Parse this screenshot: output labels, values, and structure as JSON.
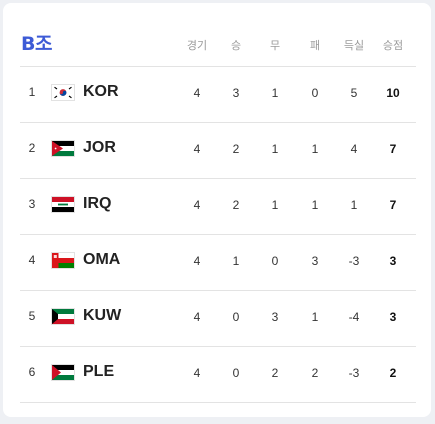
{
  "group": {
    "title": "B조"
  },
  "headers": {
    "played": "경기",
    "won": "승",
    "drawn": "무",
    "lost": "패",
    "gd": "득실",
    "points": "승점"
  },
  "rows": [
    {
      "rank": "1",
      "team": "KOR",
      "flag": "south-korea-flag-icon",
      "played": "4",
      "won": "3",
      "drawn": "1",
      "lost": "0",
      "gd": "5",
      "points": "10"
    },
    {
      "rank": "2",
      "team": "JOR",
      "flag": "jordan-flag-icon",
      "played": "4",
      "won": "2",
      "drawn": "1",
      "lost": "1",
      "gd": "4",
      "points": "7"
    },
    {
      "rank": "3",
      "team": "IRQ",
      "flag": "iraq-flag-icon",
      "played": "4",
      "won": "2",
      "drawn": "1",
      "lost": "1",
      "gd": "1",
      "points": "7"
    },
    {
      "rank": "4",
      "team": "OMA",
      "flag": "oman-flag-icon",
      "played": "4",
      "won": "1",
      "drawn": "0",
      "lost": "3",
      "gd": "-3",
      "points": "3"
    },
    {
      "rank": "5",
      "team": "KUW",
      "flag": "kuwait-flag-icon",
      "played": "4",
      "won": "0",
      "drawn": "3",
      "lost": "1",
      "gd": "-4",
      "points": "3"
    },
    {
      "rank": "6",
      "team": "PLE",
      "flag": "palestine-flag-icon",
      "played": "4",
      "won": "0",
      "drawn": "2",
      "lost": "2",
      "gd": "-3",
      "points": "2"
    }
  ]
}
